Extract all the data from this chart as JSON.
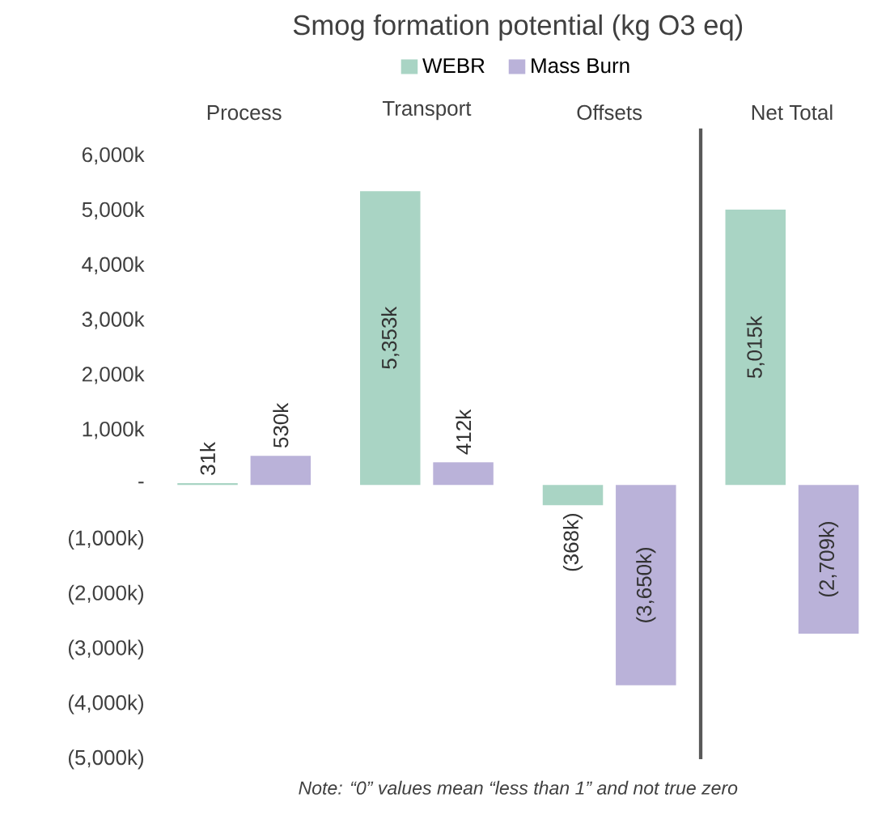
{
  "chart_data": {
    "type": "bar",
    "title": "Smog formation potential (kg O3 eq)",
    "categories": [
      "Process",
      "Transport",
      "Offsets",
      "Net Total"
    ],
    "series": [
      {
        "name": "WEBR",
        "color": "#a9d4c4",
        "values": [
          31,
          5353,
          -368,
          5015
        ],
        "value_labels": [
          "31k",
          "5,353k",
          "(368k)",
          "5,015k"
        ]
      },
      {
        "name": "Mass Burn",
        "color": "#bab2d9",
        "values": [
          530,
          412,
          -3650,
          -2709
        ],
        "value_labels": [
          "530k",
          "412k",
          "(3,650k)",
          "(2,709k)"
        ]
      }
    ],
    "ylim": [
      -5000,
      6500
    ],
    "yticks": [
      {
        "value": -5000,
        "label": "(5,000k)"
      },
      {
        "value": -4000,
        "label": "(4,000k)"
      },
      {
        "value": -3000,
        "label": "(3,000k)"
      },
      {
        "value": -2000,
        "label": "(2,000k)"
      },
      {
        "value": -1000,
        "label": "(1,000k)"
      },
      {
        "value": 0,
        "label": "-"
      },
      {
        "value": 1000,
        "label": "1,000k"
      },
      {
        "value": 2000,
        "label": "2,000k"
      },
      {
        "value": 3000,
        "label": "3,000k"
      },
      {
        "value": 4000,
        "label": "4,000k"
      },
      {
        "value": 5000,
        "label": "5,000k"
      },
      {
        "value": 6000,
        "label": "6,000k"
      }
    ],
    "legend": "top",
    "grid": false,
    "annotations": [
      "Note: “0” values mean “less than 1” and not true zero"
    ]
  }
}
